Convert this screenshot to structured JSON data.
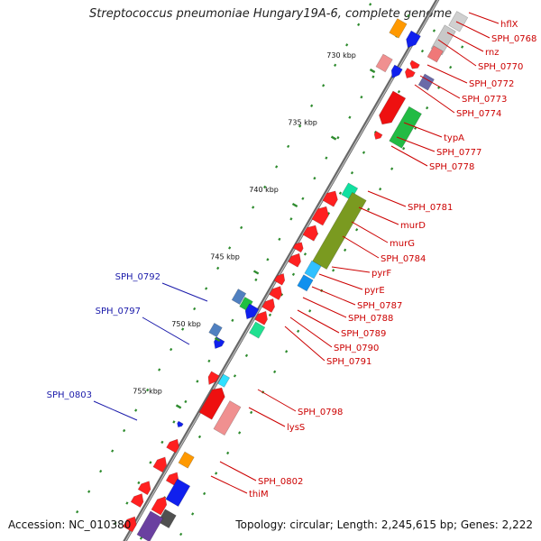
{
  "title": "Streptococcus pneumoniae Hungary19A-6, complete genome",
  "footer": {
    "accession": "Accession: NC_010380",
    "topology": "Topology: circular; Length: 2,245,615 bp; Genes: 2,222"
  },
  "colors": {
    "backbone": "#8c8c8c",
    "tick": "#2e8b2e",
    "label_red": "#cc0000",
    "label_blue": "#1a1aaa"
  },
  "ruler": [
    {
      "label": "730 kbp",
      "kbp": 730
    },
    {
      "label": "735 kbp",
      "kbp": 735
    },
    {
      "label": "740 kbp",
      "kbp": 740
    },
    {
      "label": "745 kbp",
      "kbp": 745
    },
    {
      "label": "750 kbp",
      "kbp": 750
    },
    {
      "label": "755 kbp",
      "kbp": 755
    }
  ],
  "gene_labels_right": [
    {
      "name": "hflX"
    },
    {
      "name": "SPH_0768"
    },
    {
      "name": "rnz"
    },
    {
      "name": "SPH_0770"
    },
    {
      "name": "SPH_0772"
    },
    {
      "name": "SPH_0773"
    },
    {
      "name": "SPH_0774"
    },
    {
      "name": "typA"
    },
    {
      "name": "SPH_0777"
    },
    {
      "name": "SPH_0778"
    },
    {
      "name": "SPH_0781"
    },
    {
      "name": "murD"
    },
    {
      "name": "murG"
    },
    {
      "name": "SPH_0784"
    },
    {
      "name": "pyrF"
    },
    {
      "name": "pyrE"
    },
    {
      "name": "SPH_0787"
    },
    {
      "name": "SPH_0788"
    },
    {
      "name": "SPH_0789"
    },
    {
      "name": "SPH_0790"
    },
    {
      "name": "SPH_0791"
    },
    {
      "name": "SPH_0798"
    },
    {
      "name": "lysS"
    },
    {
      "name": "SPH_0802"
    },
    {
      "name": "thiM"
    }
  ],
  "gene_labels_left": [
    {
      "name": "SPH_0792"
    },
    {
      "name": "SPH_0797"
    },
    {
      "name": "SPH_0803"
    }
  ]
}
